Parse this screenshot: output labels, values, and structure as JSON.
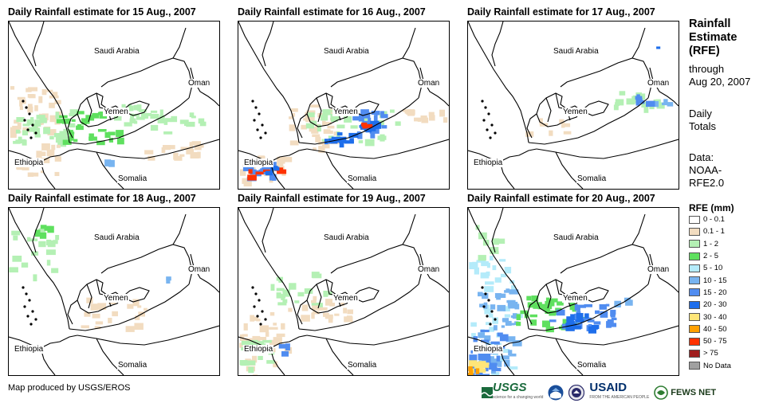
{
  "panels": [
    {
      "title": "Daily Rainfall estimate for 15 Aug., 2007"
    },
    {
      "title": "Daily Rainfall estimate for 16 Aug., 2007"
    },
    {
      "title": "Daily Rainfall estimate for 17 Aug., 2007"
    },
    {
      "title": "Daily Rainfall estimate for 18 Aug., 2007"
    },
    {
      "title": "Daily Rainfall estimate for 19 Aug., 2007"
    },
    {
      "title": "Daily Rainfall estimate for 20 Aug., 2007"
    }
  ],
  "places": {
    "saudi": "Saudi Arabia",
    "oman": "Oman",
    "yemen": "Yemen",
    "ethiopia": "Ethiopia",
    "somalia": "Somalia"
  },
  "sidebar": {
    "title_line1": "Rainfall",
    "title_line2": "Estimate",
    "title_line3": "(RFE)",
    "through": "through",
    "date": "Aug 20, 2007",
    "totals_line1": "Daily",
    "totals_line2": "Totals",
    "data_line1": "Data:",
    "data_line2": "NOAA-",
    "data_line3": "RFE2.0"
  },
  "legend": {
    "title": "RFE (mm)",
    "items": [
      {
        "label": "0 - 0.1",
        "color": "#ffffff"
      },
      {
        "label": "0.1 - 1",
        "color": "#f2dcc0"
      },
      {
        "label": "1 - 2",
        "color": "#b4f0b4"
      },
      {
        "label": "2 - 5",
        "color": "#5fe05f"
      },
      {
        "label": "5 - 10",
        "color": "#b4ebfa"
      },
      {
        "label": "10 - 15",
        "color": "#78b4f0"
      },
      {
        "label": "15 - 20",
        "color": "#508cf0"
      },
      {
        "label": "20 - 30",
        "color": "#1e6eeb"
      },
      {
        "label": "30 - 40",
        "color": "#ffe678"
      },
      {
        "label": "40 - 50",
        "color": "#ffa000"
      },
      {
        "label": "50 - 75",
        "color": "#ff3200"
      },
      {
        "label": "> 75",
        "color": "#a01e1e"
      },
      {
        "label": "No Data",
        "color": "#a0a0a0"
      }
    ]
  },
  "footer": {
    "credit": "Map produced by USGS/EROS",
    "usgs": "USGS",
    "usgs_tag": "science for a changing world",
    "usaid": "USAID",
    "usaid_tag": "FROM THE AMERICAN PEOPLE",
    "fews": "FEWS NET"
  }
}
